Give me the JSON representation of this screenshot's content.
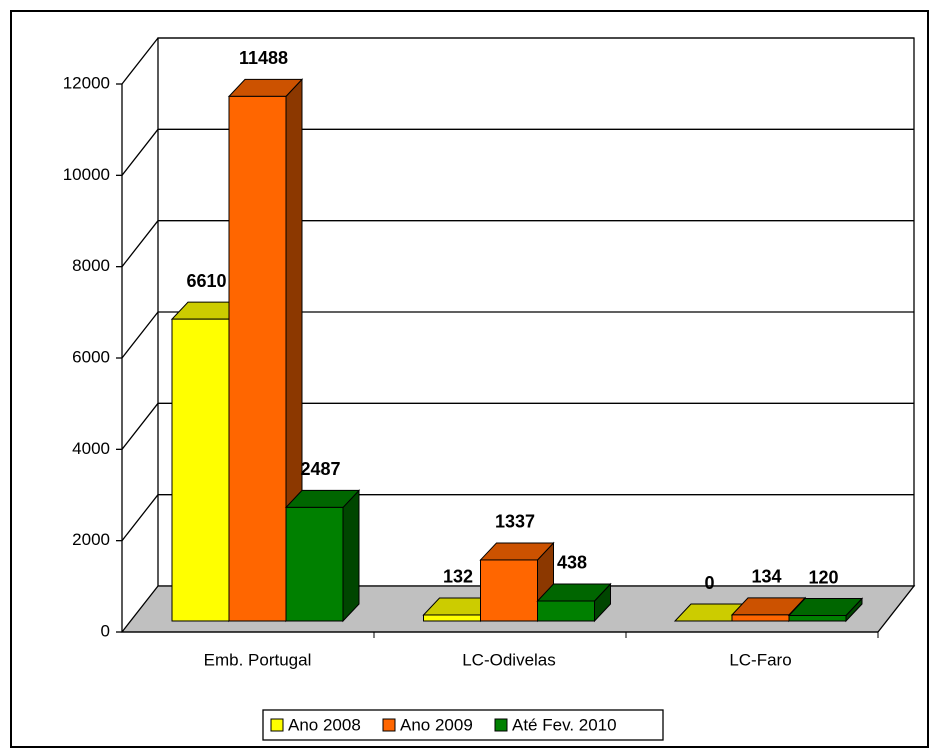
{
  "chart_data": {
    "type": "bar3d",
    "categories": [
      "Emb. Portugal",
      "LC-Odivelas",
      "LC-Faro"
    ],
    "series": [
      {
        "name": "Ano 2008",
        "color": "#ffff00",
        "values": [
          6610,
          132,
          0
        ]
      },
      {
        "name": "Ano 2009",
        "color": "#ff6600",
        "values": [
          11488,
          1337,
          134
        ]
      },
      {
        "name": "Até Fev. 2010",
        "color": "#008000",
        "values": [
          2487,
          438,
          120
        ]
      }
    ],
    "ylim": [
      0,
      12000
    ],
    "yticks": [
      0,
      2000,
      4000,
      6000,
      8000,
      10000,
      12000
    ],
    "grid": true,
    "legend": "bottom"
  }
}
